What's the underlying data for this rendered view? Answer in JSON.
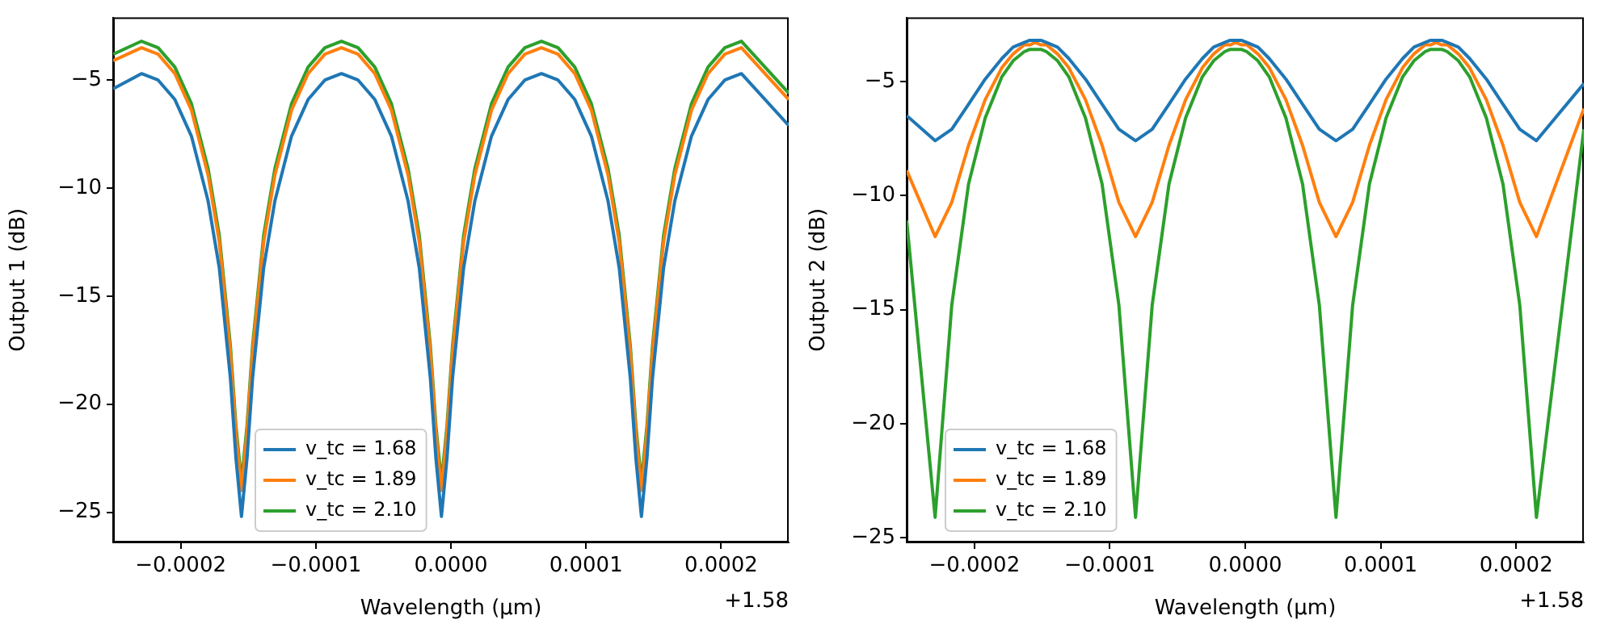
{
  "chart_data": [
    {
      "type": "line",
      "xlabel": "Wavelength (µm)",
      "ylabel": "Output 1 (dB)",
      "annotations": [
        "+1.58"
      ],
      "legend": "bottom left",
      "grid": false,
      "xlim": [
        -0.00025,
        0.00025
      ],
      "ylim": [
        -26.4,
        -2.1
      ],
      "xticks": [
        {
          "value": -0.0002,
          "label": "−0.0002"
        },
        {
          "value": -0.0001,
          "label": "−0.0001"
        },
        {
          "value": 0,
          "label": "0.0000"
        },
        {
          "value": 0.0001,
          "label": "0.0001"
        },
        {
          "value": 0.0002,
          "label": "0.0002"
        }
      ],
      "yticks": [
        {
          "value": -25,
          "label": "−25"
        },
        {
          "value": -20,
          "label": "−20"
        },
        {
          "value": -15,
          "label": "−15"
        },
        {
          "value": -10,
          "label": "−10"
        },
        {
          "value": -5,
          "label": "−5"
        }
      ],
      "x": [
        -0.00025,
        -0.000229,
        -0.0002167,
        -0.0002043,
        -0.000192,
        -0.0001797,
        -0.0001714,
        -0.0001632,
        -0.0001591,
        -0.000155,
        -0.0001509,
        -0.0001468,
        -0.0001386,
        -0.0001303,
        -0.000118,
        -0.0001057,
        -9.33e-05,
        -8.1e-05,
        -6.87e-05,
        -5.63e-05,
        -4.4e-05,
        -3.17e-05,
        -2.34e-05,
        -1.52e-05,
        -1.11e-05,
        -7e-06,
        -2.9e-06,
        1.2e-06,
        9.4e-06,
        1.77e-05,
        3e-05,
        4.23e-05,
        5.47e-05,
        6.7e-05,
        7.93e-05,
        9.17e-05,
        0.000104,
        0.0001163,
        0.0001246,
        0.0001328,
        0.0001369,
        0.000141,
        0.0001451,
        0.0001492,
        0.0001574,
        0.0001657,
        0.000178,
        0.0001903,
        0.0002027,
        0.000215,
        0.00025
      ],
      "series": [
        {
          "name": "v_tc = 1.68",
          "color": "#1f77b4",
          "values": [
            -5.4,
            -4.7,
            -5.0,
            -5.9,
            -7.6,
            -10.6,
            -13.7,
            -18.8,
            -22.5,
            -25.2,
            -22.5,
            -18.8,
            -13.7,
            -10.6,
            -7.6,
            -5.9,
            -5.0,
            -4.7,
            -5.0,
            -5.9,
            -7.6,
            -10.6,
            -13.7,
            -18.8,
            -22.5,
            -25.2,
            -22.5,
            -18.8,
            -13.7,
            -10.6,
            -7.6,
            -5.9,
            -5.0,
            -4.7,
            -5.0,
            -5.9,
            -7.6,
            -10.6,
            -13.7,
            -18.8,
            -22.5,
            -25.2,
            -22.5,
            -18.8,
            -13.7,
            -10.6,
            -7.6,
            -5.9,
            -5.0,
            -4.7,
            -7.1
          ]
        },
        {
          "name": "v_tc = 1.89",
          "color": "#ff7f0e",
          "values": [
            -4.1,
            -3.5,
            -3.8,
            -4.7,
            -6.4,
            -9.4,
            -12.5,
            -17.6,
            -21.3,
            -24.0,
            -21.3,
            -17.6,
            -12.5,
            -9.4,
            -6.4,
            -4.7,
            -3.8,
            -3.5,
            -3.8,
            -4.7,
            -6.4,
            -9.4,
            -12.5,
            -17.6,
            -21.3,
            -24.0,
            -21.3,
            -17.6,
            -12.5,
            -9.4,
            -6.4,
            -4.7,
            -3.8,
            -3.5,
            -3.8,
            -4.7,
            -6.4,
            -9.4,
            -12.5,
            -17.6,
            -21.3,
            -24.0,
            -21.3,
            -17.6,
            -12.5,
            -9.4,
            -6.4,
            -4.7,
            -3.8,
            -3.5,
            -5.9
          ]
        },
        {
          "name": "v_tc = 2.10",
          "color": "#2ca02c",
          "values": [
            -3.8,
            -3.2,
            -3.5,
            -4.4,
            -6.1,
            -9.1,
            -12.2,
            -17.3,
            -21.0,
            -23.6,
            -21.0,
            -17.3,
            -12.2,
            -9.1,
            -6.1,
            -4.4,
            -3.5,
            -3.2,
            -3.5,
            -4.4,
            -6.1,
            -9.1,
            -12.2,
            -17.3,
            -21.0,
            -23.6,
            -21.0,
            -17.3,
            -12.2,
            -9.1,
            -6.1,
            -4.4,
            -3.5,
            -3.2,
            -3.5,
            -4.4,
            -6.1,
            -9.1,
            -12.2,
            -17.3,
            -21.0,
            -23.6,
            -21.0,
            -17.3,
            -12.2,
            -9.1,
            -6.1,
            -4.4,
            -3.5,
            -3.2,
            -5.6
          ]
        }
      ]
    },
    {
      "type": "line",
      "xlabel": "Wavelength (µm)",
      "ylabel": "Output 2 (dB)",
      "annotations": [
        "+1.58"
      ],
      "legend": "bottom left",
      "grid": false,
      "xlim": [
        -0.00025,
        0.00025
      ],
      "ylim": [
        -25.2,
        -2.2
      ],
      "xticks": [
        {
          "value": -0.0002,
          "label": "−0.0002"
        },
        {
          "value": -0.0001,
          "label": "−0.0001"
        },
        {
          "value": 0,
          "label": "0.0000"
        },
        {
          "value": 0.0001,
          "label": "0.0001"
        },
        {
          "value": 0.0002,
          "label": "0.0002"
        }
      ],
      "yticks": [
        {
          "value": -25,
          "label": "−25"
        },
        {
          "value": -20,
          "label": "−20"
        },
        {
          "value": -15,
          "label": "−15"
        },
        {
          "value": -10,
          "label": "−10"
        },
        {
          "value": -5,
          "label": "−5"
        }
      ],
      "x": [
        -0.00025,
        -0.000229,
        -0.0002167,
        -0.0002043,
        -0.000192,
        -0.0001797,
        -0.0001714,
        -0.0001632,
        -0.0001591,
        -0.000155,
        -0.0001509,
        -0.0001468,
        -0.0001386,
        -0.0001303,
        -0.000118,
        -0.0001057,
        -9.33e-05,
        -8.1e-05,
        -6.87e-05,
        -5.63e-05,
        -4.4e-05,
        -3.17e-05,
        -2.34e-05,
        -1.52e-05,
        -1.11e-05,
        -7e-06,
        -2.9e-06,
        1.2e-06,
        9.4e-06,
        1.77e-05,
        3e-05,
        4.23e-05,
        5.47e-05,
        6.7e-05,
        7.93e-05,
        9.17e-05,
        0.000104,
        0.0001163,
        0.0001246,
        0.0001328,
        0.0001369,
        0.000141,
        0.0001451,
        0.0001492,
        0.0001574,
        0.0001657,
        0.000178,
        0.0001903,
        0.0002027,
        0.000215,
        0.00025
      ],
      "series": [
        {
          "name": "v_tc = 1.68",
          "color": "#1f77b4",
          "values": [
            -6.5,
            -7.6,
            -7.1,
            -6.0,
            -4.9,
            -4.0,
            -3.5,
            -3.3,
            -3.2,
            -3.2,
            -3.2,
            -3.3,
            -3.5,
            -4.0,
            -4.9,
            -6.0,
            -7.1,
            -7.6,
            -7.1,
            -6.0,
            -4.9,
            -4.0,
            -3.5,
            -3.3,
            -3.2,
            -3.2,
            -3.2,
            -3.3,
            -3.5,
            -4.0,
            -4.9,
            -6.0,
            -7.1,
            -7.6,
            -7.1,
            -6.0,
            -4.9,
            -4.0,
            -3.5,
            -3.3,
            -3.2,
            -3.2,
            -3.2,
            -3.3,
            -3.5,
            -4.0,
            -4.9,
            -6.0,
            -7.1,
            -7.6,
            -5.1
          ]
        },
        {
          "name": "v_tc = 1.89",
          "color": "#ff7f0e",
          "values": [
            -8.9,
            -11.8,
            -10.3,
            -7.8,
            -5.8,
            -4.4,
            -3.8,
            -3.4,
            -3.4,
            -3.3,
            -3.4,
            -3.4,
            -3.8,
            -4.4,
            -5.8,
            -7.8,
            -10.3,
            -11.8,
            -10.3,
            -7.8,
            -5.8,
            -4.4,
            -3.8,
            -3.4,
            -3.4,
            -3.3,
            -3.4,
            -3.4,
            -3.8,
            -4.4,
            -5.8,
            -7.8,
            -10.3,
            -11.8,
            -10.3,
            -7.8,
            -5.8,
            -4.4,
            -3.8,
            -3.4,
            -3.4,
            -3.3,
            -3.4,
            -3.4,
            -3.8,
            -4.4,
            -5.8,
            -7.8,
            -10.3,
            -11.8,
            -6.2
          ]
        },
        {
          "name": "v_tc = 2.10",
          "color": "#2ca02c",
          "values": [
            -11.1,
            -24.1,
            -14.8,
            -9.5,
            -6.6,
            -4.8,
            -4.1,
            -3.7,
            -3.6,
            -3.6,
            -3.6,
            -3.7,
            -4.1,
            -4.8,
            -6.6,
            -9.5,
            -14.8,
            -24.1,
            -14.8,
            -9.5,
            -6.6,
            -4.8,
            -4.1,
            -3.7,
            -3.6,
            -3.6,
            -3.6,
            -3.7,
            -4.1,
            -4.8,
            -6.6,
            -9.5,
            -14.8,
            -24.1,
            -14.8,
            -9.5,
            -6.6,
            -4.8,
            -4.1,
            -3.7,
            -3.6,
            -3.6,
            -3.6,
            -3.7,
            -4.1,
            -4.8,
            -6.6,
            -9.5,
            -14.8,
            -24.1,
            -7.1
          ]
        }
      ]
    }
  ]
}
